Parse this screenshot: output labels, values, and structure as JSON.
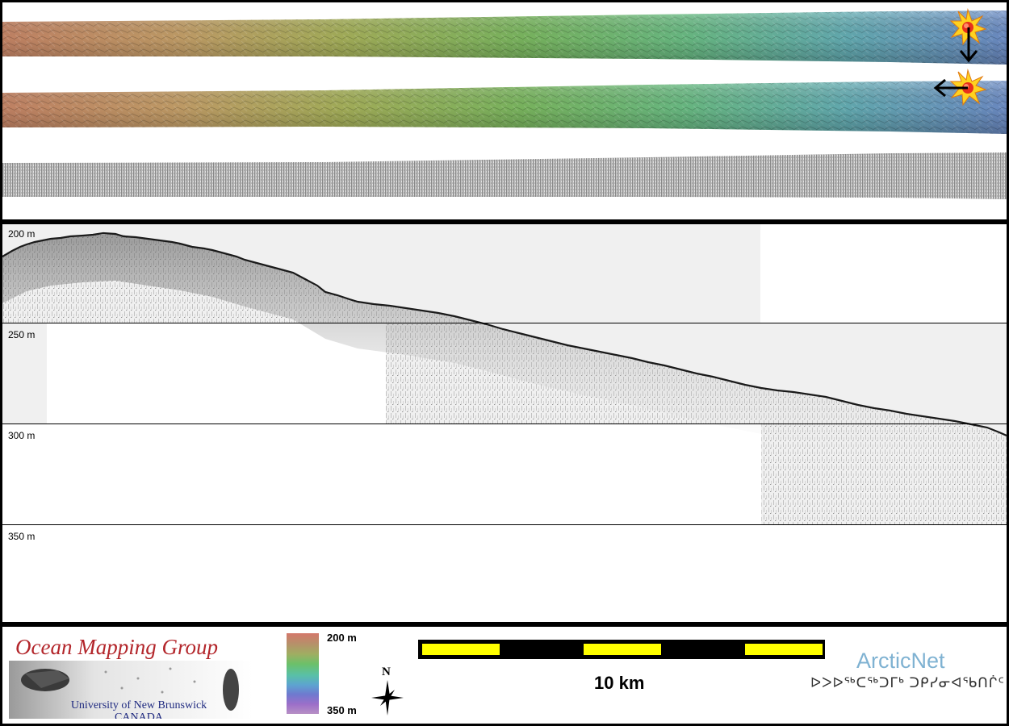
{
  "profile": {
    "depth_labels": [
      "200 m",
      "250 m",
      "300 m",
      "350 m"
    ]
  },
  "legend": {
    "org_title": "Ocean Mapping Group",
    "org_line1": "University of New Brunswick",
    "org_line2": "CANADA",
    "colorbar_min": "200 m",
    "colorbar_max": "350 m",
    "scale_label": "10 km",
    "north_label": "N",
    "partner_name": "ArcticNet",
    "partner_syllabics": "ᐅᐳᐅᖅᑕᖅᑐᒥᒃ ᑐᑭᓯᓂᐊᖃᑎᒌᑦ"
  },
  "colors": {
    "shallow": "#c98768",
    "mid": "#6cbf73",
    "deep": "#6f9ecf",
    "scale_yellow": "#ffff00",
    "omg_red": "#b3262b",
    "omg_blue": "#1f2a80",
    "arcticnet_blue": "#7fb2d2"
  },
  "icons": {
    "sun_marker": "sun-burst-icon",
    "direction_arrow": "arrow-icon",
    "compass": "north-arrow-icon"
  }
}
